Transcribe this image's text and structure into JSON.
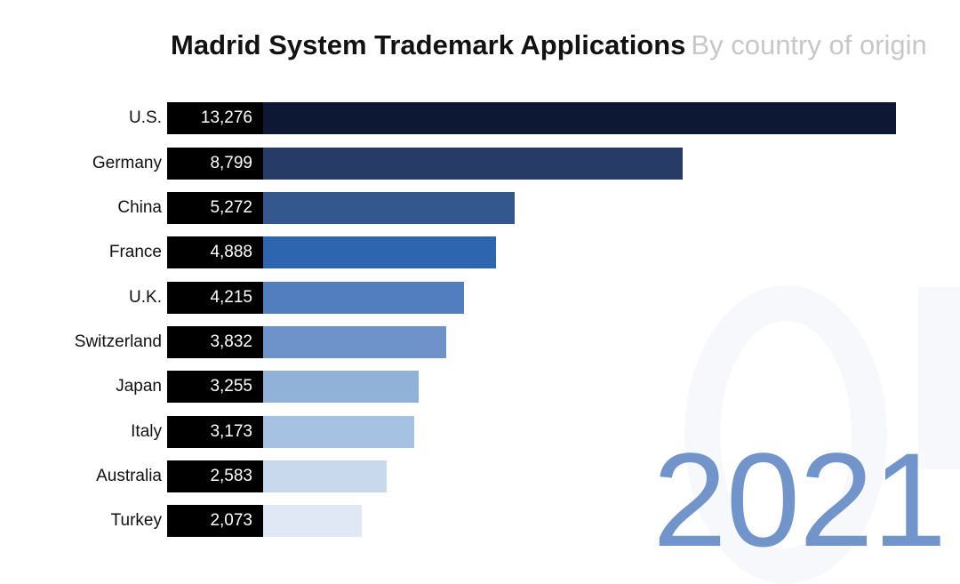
{
  "header": {
    "title": "Madrid System Trademark Applications",
    "subtitle": "By country of origin"
  },
  "colors": {
    "background": "#ffffff",
    "title": "#121212",
    "subtitle": "#c7c7c7",
    "value_box": "#000000",
    "value_text": "#ffffff",
    "year_text": "#7195cb",
    "watermark": "#f7f8fb"
  },
  "chart_data": {
    "type": "bar",
    "orientation": "horizontal",
    "title": "Madrid System Trademark Applications",
    "subtitle": "By country of origin",
    "year_label": "2021",
    "sorted": "descending",
    "xlim": [
      0,
      13276
    ],
    "grid": false,
    "legend": false,
    "categories": [
      "U.S.",
      "Germany",
      "China",
      "France",
      "U.K.",
      "Switzerland",
      "Japan",
      "Italy",
      "Australia",
      "Turkey"
    ],
    "values": [
      13276,
      8799,
      5272,
      4888,
      4215,
      3832,
      3255,
      3173,
      2583,
      2073
    ],
    "value_labels": [
      "13,276",
      "8,799",
      "5,272",
      "4,888",
      "4,215",
      "3,832",
      "3,255",
      "3,173",
      "2,583",
      "2,073"
    ],
    "bar_colors": [
      "#0d1834",
      "#263b65",
      "#34578d",
      "#2d65ae",
      "#527dbe",
      "#6e93ca",
      "#90b1d8",
      "#a6c2e2",
      "#c8d9ee",
      "#dfe8f4"
    ]
  }
}
